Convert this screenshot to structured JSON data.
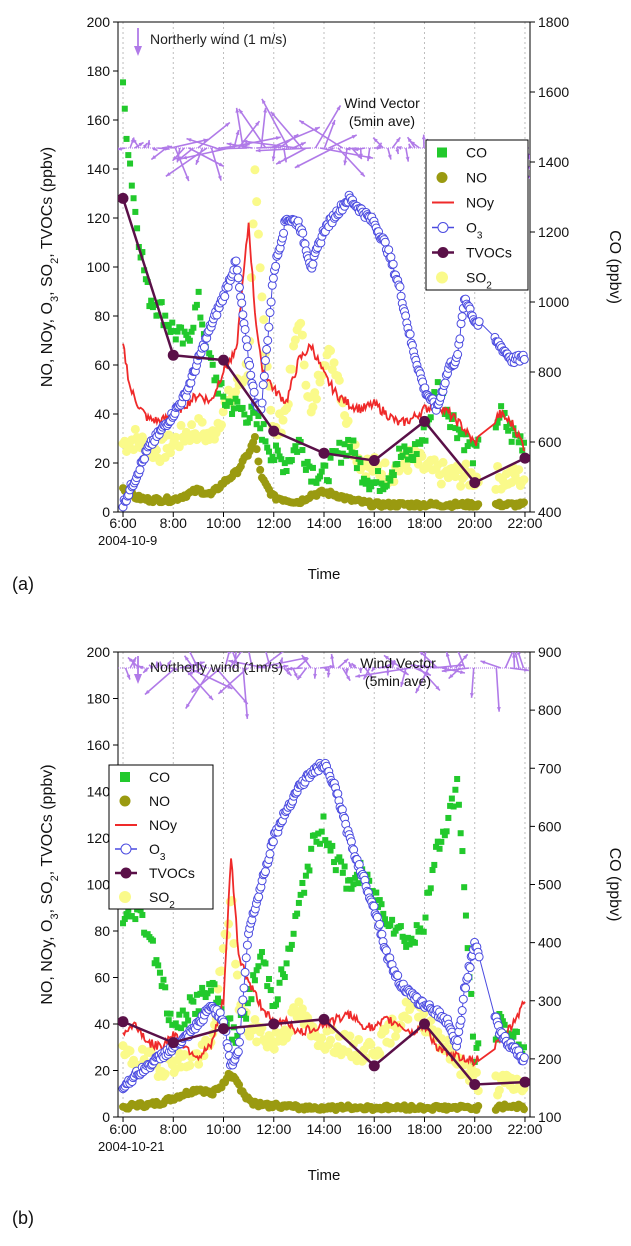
{
  "panel_labels": [
    "(a)",
    "(b)"
  ],
  "legend_entries": [
    "CO",
    "NO",
    "NOy",
    "O3",
    "TVOCs",
    "SO2"
  ],
  "colors": {
    "CO": "#22c92c",
    "NO": "#9a9a10",
    "NOy": "#ef2a2a",
    "O3": "#4a4ae0",
    "TVOCs": "#5a1048",
    "SO2": "#fafa8a",
    "wind": "#b07ae8"
  },
  "chart_data": [
    {
      "type": "line",
      "panel": "(a)",
      "date_label": "2004-10-9",
      "xlabel": "Time",
      "ylabel_left": "NO, NOy, O3, SO2, TVOCs (ppbv)",
      "ylabel_right": "CO (ppbv)",
      "x_ticks": [
        "6:00",
        "8:00",
        "10:00",
        "12:00",
        "14:00",
        "16:00",
        "18:00",
        "20:00",
        "22:00"
      ],
      "xlim_hours": [
        5.8,
        22.2
      ],
      "ylim_left": [
        0,
        200
      ],
      "yticks_left": [
        0,
        20,
        40,
        60,
        80,
        100,
        120,
        140,
        160,
        180,
        200
      ],
      "ylim_right": [
        400,
        1800
      ],
      "yticks_right": [
        400,
        600,
        800,
        1000,
        1200,
        1400,
        1600,
        1800
      ],
      "wind_annotation": "Northerly wind (1 m/s)",
      "wind_vector_label": [
        "Wind Vector",
        "(5min ave)"
      ],
      "legend_position": "upper-right",
      "series": [
        {
          "name": "TVOCs",
          "axis": "left",
          "x": [
            6,
            8,
            10,
            12,
            14,
            16,
            18,
            20,
            22
          ],
          "values": [
            128,
            64,
            62,
            33,
            24,
            21,
            37,
            12,
            22
          ]
        },
        {
          "name": "O3",
          "axis": "left",
          "x": [
            6,
            6.5,
            7,
            7.5,
            8,
            8.5,
            9,
            9.5,
            10,
            10.5,
            11,
            11.25,
            11.5,
            12,
            12.5,
            13,
            13.5,
            14,
            14.5,
            15,
            15.5,
            16,
            16.5,
            17,
            17.5,
            18,
            18.5,
            19,
            19.3,
            19.6,
            20,
            21,
            21.5,
            22
          ],
          "values": [
            3,
            14,
            26,
            33,
            40,
            48,
            62,
            76,
            88,
            102,
            62,
            46,
            42,
            98,
            120,
            118,
            100,
            115,
            122,
            128,
            123,
            118,
            108,
            92,
            68,
            50,
            42,
            60,
            62,
            88,
            78,
            68,
            62,
            63
          ]
        },
        {
          "name": "NOy",
          "axis": "left",
          "x": [
            6,
            6.3,
            6.7,
            7,
            7.5,
            8,
            8.5,
            9,
            9.5,
            10,
            10.5,
            11,
            11.25,
            11.5,
            12,
            12.5,
            13,
            13.5,
            14,
            14.5,
            15,
            15.5,
            16,
            16.5,
            17,
            17.5,
            18,
            18.5,
            19,
            19.5,
            20,
            21,
            21.5,
            22
          ],
          "values": [
            68,
            50,
            42,
            38,
            37,
            40,
            44,
            48,
            45,
            58,
            65,
            118,
            82,
            60,
            50,
            45,
            62,
            68,
            56,
            48,
            44,
            42,
            44,
            40,
            36,
            38,
            42,
            44,
            40,
            35,
            28,
            40,
            36,
            26
          ]
        },
        {
          "name": "SO2",
          "axis": "left",
          "x": [
            6,
            6.5,
            7,
            7.5,
            8,
            8.5,
            9,
            9.5,
            10,
            10.5,
            11,
            11.25,
            11.5,
            12,
            12.5,
            13,
            13.5,
            14,
            14.5,
            15,
            15.5,
            16,
            16.5,
            17,
            17.5,
            18,
            18.5,
            19,
            19.5,
            20,
            21,
            22
          ],
          "values": [
            28,
            30,
            26,
            25,
            28,
            32,
            34,
            30,
            42,
            50,
            60,
            135,
            90,
            30,
            42,
            80,
            38,
            65,
            60,
            32,
            20,
            18,
            16,
            18,
            22,
            18,
            16,
            15,
            15,
            14,
            14,
            14
          ]
        },
        {
          "name": "NO",
          "axis": "left",
          "x": [
            6,
            6.5,
            7,
            7.5,
            8,
            8.5,
            9,
            9.5,
            10,
            10.5,
            11,
            11.25,
            11.5,
            12,
            12.5,
            13,
            13.5,
            14,
            14.5,
            15,
            15.5,
            16,
            17,
            18,
            19,
            20,
            21,
            22
          ],
          "values": [
            10,
            6,
            5,
            5,
            5,
            7,
            9,
            7,
            12,
            16,
            24,
            30,
            14,
            6,
            5,
            4,
            7,
            8,
            7,
            5,
            4,
            3,
            3,
            3,
            3,
            3,
            3,
            3
          ]
        },
        {
          "name": "CO",
          "axis": "right",
          "x": [
            6,
            6.2,
            6.5,
            7,
            7.5,
            8,
            8.5,
            9,
            9.5,
            10,
            10.5,
            11,
            11.5,
            12,
            12.5,
            13,
            13.5,
            14,
            14.5,
            15,
            15.5,
            16,
            16.5,
            17,
            17.5,
            18,
            18.5,
            19,
            19.5,
            20,
            21,
            21.5,
            22
          ],
          "values": [
            1600,
            1450,
            1250,
            1020,
            980,
            920,
            880,
            1000,
            820,
            720,
            700,
            680,
            640,
            560,
            540,
            600,
            520,
            500,
            560,
            600,
            520,
            480,
            500,
            560,
            560,
            620,
            760,
            680,
            620,
            560,
            680,
            620,
            600
          ]
        }
      ]
    },
    {
      "type": "line",
      "panel": "(b)",
      "date_label": "2004-10-21",
      "xlabel": "Time",
      "ylabel_left": "NO, NOy, O3, SO2, TVOCs (ppbv)",
      "ylabel_right": "CO (ppbv)",
      "x_ticks": [
        "6:00",
        "8:00",
        "10:00",
        "12:00",
        "14:00",
        "16:00",
        "18:00",
        "20:00",
        "22:00"
      ],
      "xlim_hours": [
        5.8,
        22.2
      ],
      "ylim_left": [
        0,
        200
      ],
      "yticks_left": [
        0,
        20,
        40,
        60,
        80,
        100,
        120,
        140,
        160,
        180,
        200
      ],
      "ylim_right": [
        100,
        900
      ],
      "yticks_right": [
        100,
        200,
        300,
        400,
        500,
        600,
        700,
        800,
        900
      ],
      "wind_annotation": "Northerly wind (1m/s)",
      "wind_vector_label": [
        "Wind Vector",
        "(5min ave)"
      ],
      "legend_position": "upper-left",
      "series": [
        {
          "name": "TVOCs",
          "axis": "left",
          "x": [
            6,
            8,
            10,
            12,
            14,
            16,
            18,
            20,
            22
          ],
          "values": [
            41,
            32,
            38,
            40,
            42,
            22,
            40,
            14,
            15
          ]
        },
        {
          "name": "O3",
          "axis": "left",
          "x": [
            6,
            6.5,
            7,
            7.5,
            8,
            8.5,
            9,
            9.5,
            10,
            10.3,
            10.6,
            11,
            11.5,
            12,
            12.5,
            13,
            13.5,
            14,
            14.5,
            15,
            15.5,
            16,
            16.5,
            17,
            17.5,
            18,
            18.5,
            19,
            19.3,
            19.6,
            20,
            21,
            21.5,
            22
          ],
          "values": [
            13,
            18,
            22,
            26,
            30,
            34,
            40,
            48,
            42,
            22,
            28,
            80,
            100,
            120,
            132,
            142,
            148,
            152,
            140,
            120,
            105,
            90,
            70,
            58,
            52,
            48,
            45,
            40,
            30,
            55,
            75,
            36,
            30,
            24
          ]
        },
        {
          "name": "NOy",
          "axis": "left",
          "x": [
            6,
            6.5,
            7,
            7.5,
            8,
            8.5,
            9,
            9.5,
            10,
            10.3,
            10.6,
            11,
            11.5,
            12,
            12.5,
            13,
            13.5,
            14,
            14.5,
            15,
            15.5,
            16,
            16.5,
            17,
            17.5,
            18,
            18.5,
            19,
            19.5,
            20,
            21,
            21.5,
            22
          ],
          "values": [
            36,
            40,
            32,
            30,
            36,
            30,
            26,
            30,
            50,
            112,
            70,
            58,
            48,
            40,
            42,
            36,
            38,
            40,
            42,
            44,
            40,
            38,
            42,
            40,
            36,
            40,
            30,
            26,
            26,
            24,
            32,
            40,
            50
          ]
        },
        {
          "name": "SO2",
          "axis": "left",
          "x": [
            6,
            6.5,
            7,
            7.5,
            8,
            8.5,
            9,
            9.5,
            10,
            10.3,
            10.6,
            11,
            11.5,
            12,
            12.5,
            13,
            13.5,
            14,
            14.5,
            15,
            15.5,
            16,
            16.5,
            17,
            17.5,
            18,
            18.5,
            19,
            19.5,
            20,
            21,
            22
          ],
          "values": [
            26,
            25,
            24,
            22,
            24,
            24,
            26,
            30,
            70,
            95,
            50,
            38,
            36,
            32,
            38,
            46,
            36,
            34,
            32,
            30,
            28,
            30,
            34,
            42,
            48,
            42,
            36,
            28,
            22,
            16,
            14,
            14
          ]
        },
        {
          "name": "NO",
          "axis": "left",
          "x": [
            6,
            6.5,
            7,
            7.5,
            8,
            8.5,
            9,
            9.5,
            10,
            10.2,
            10.5,
            10.8,
            11,
            11.5,
            12,
            13,
            14,
            15,
            16,
            17,
            18,
            19,
            20,
            21,
            21.5,
            22
          ],
          "values": [
            4,
            5,
            5,
            6,
            8,
            10,
            12,
            10,
            14,
            19,
            16,
            10,
            7,
            5,
            5,
            4,
            4,
            4,
            4,
            4,
            4,
            4,
            4,
            4,
            5,
            4
          ]
        },
        {
          "name": "CO",
          "axis": "right",
          "x": [
            6,
            6.5,
            7,
            7.5,
            8,
            8.5,
            9,
            9.5,
            10,
            10.5,
            11,
            11.5,
            12,
            12.5,
            13,
            13.5,
            14,
            14.5,
            15,
            15.5,
            16,
            16.5,
            17,
            17.5,
            18,
            18.5,
            19,
            19.3,
            19.6,
            20,
            21,
            21.5,
            22
          ],
          "values": [
            430,
            460,
            420,
            350,
            240,
            280,
            300,
            320,
            280,
            230,
            300,
            380,
            300,
            360,
            460,
            560,
            600,
            540,
            500,
            520,
            480,
            450,
            420,
            400,
            440,
            560,
            620,
            680,
            480,
            200,
            260,
            240,
            220
          ]
        }
      ]
    }
  ]
}
